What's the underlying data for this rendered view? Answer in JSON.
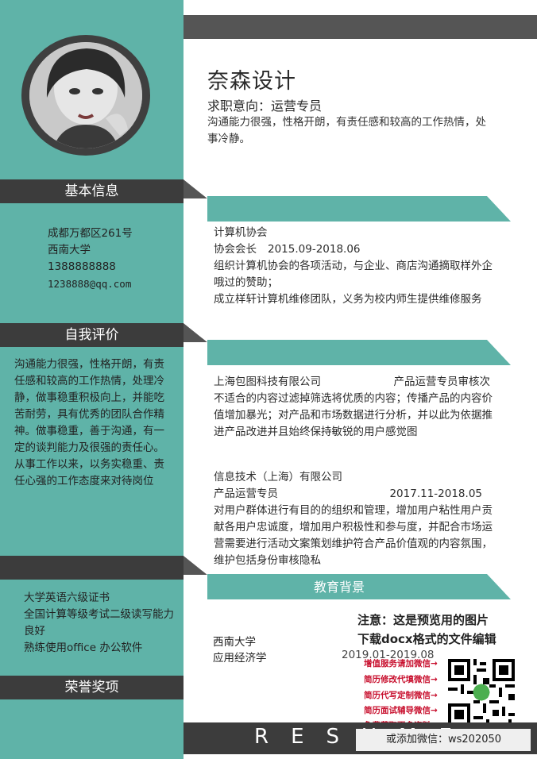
{
  "profile": {
    "name": "奈森设计",
    "intent": "求职意向：运营专员",
    "summary": "沟通能力很强，性格开朗，有责任感和较高的工作热情，处事冷静。"
  },
  "sidebar": {
    "basic_title": "基本信息",
    "basic": [
      "成都万都区261号",
      "西南大学",
      "1388888888",
      "1238888@qq.com"
    ],
    "self_title": "自我评价",
    "self_text_1": "沟通能力很强，性格开朗，有责任感和较高的工作热情，处理冷静，做事稳重积极向上，并能吃苦耐劳，具有优秀的团队合作精神。做事稳重，善于沟通，有一定的谈判能力及很强的责任心。",
    "self_text_2": "从事工作以来，以务实稳重、责任心强的工作态度来对待岗位",
    "skills": [
      "大学英语六级证书",
      "全国计算等级考试二级读写能力良好",
      "熟练使用office 办公软件"
    ],
    "honor_title": "荣誉奖项"
  },
  "campus": {
    "org": "计算机协会",
    "role": "协会会长",
    "date": "2015.09-2018.06",
    "lines": [
      "组织计算机协会的各项活动，与企业、商店沟通摘取样外企哦过的赞助；",
      "成立样轩计算机维修团队，义务为校内师生提供维修服务"
    ]
  },
  "work": [
    {
      "company": "上海包图科技有限公司",
      "role": "产品运营专员审核次",
      "desc": "不适合的内容过滤掉筛选将优质的内容；传播产品的内容价值增加暴光；对产品和市场数据进行分析，并以此为依据推进产品改进并且始终保持敏锐的用户感觉图"
    },
    {
      "company": "信息技术（上海）有限公司",
      "role": "产品运营专员",
      "date": "2017.11-2018.05",
      "desc": "对用户群体进行有目的的组织和管理，增加用户粘性用户贡献各用户忠诚度，增加用户积极性和参与度，并配合市场运营需要进行活动文案策划维护符合产品价值观的内容氛围，维护包括身份审核隐私"
    }
  ],
  "education": {
    "title": "教育背景",
    "school": "西南大学",
    "major": "应用经济学",
    "date": "2019.01-2019.08"
  },
  "notice": {
    "line1": "注意：这是预览用的图片",
    "line2": "下载docx格式的文件编辑",
    "promos": [
      "增值服务请加微信→",
      "简历修改代填微信→",
      "简历代写定制微信→",
      "简历面试辅导微信→",
      "免费获取更多资料→"
    ],
    "wechat": "或添加微信：ws202050"
  },
  "footer": {
    "resume": "RESUME"
  },
  "colors": {
    "teal": "#5fb3a8",
    "dark": "#3c3c3c",
    "promo_red": "#c8102e"
  }
}
